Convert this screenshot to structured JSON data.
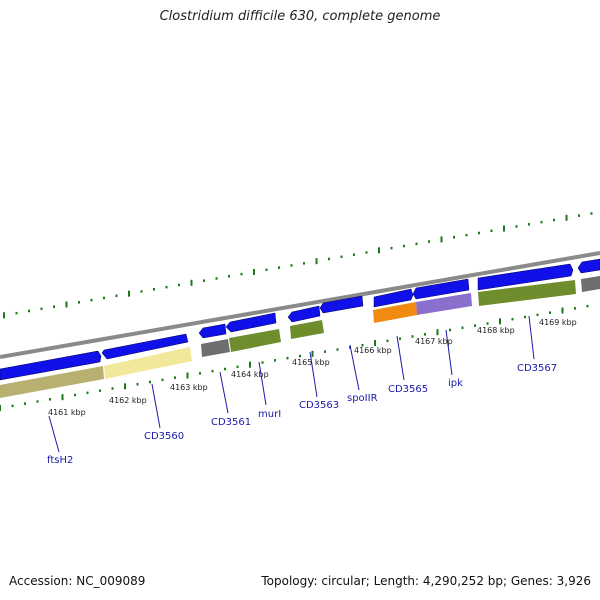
{
  "title": "Clostridium difficile 630, complete genome",
  "accession": "Accession: NC_009089",
  "stats": "Topology: circular; Length: 4,290,252 bp; Genes: 3,926",
  "colors": {
    "cds": "#1010e8",
    "tick": "#1a7a1a",
    "backbone": "#8a8a8a",
    "label": "#1a1aa8"
  },
  "kbp_labels": [
    "4161 kbp",
    "4162 kbp",
    "4163 kbp",
    "4164 kbp",
    "4165 kbp",
    "4166 kbp",
    "4167 kbp",
    "4168 kbp",
    "4169 kbp"
  ],
  "gene_labels": [
    "ftsH2",
    "CD3560",
    "CD3561",
    "murI",
    "CD3563",
    "spoIIR",
    "CD3565",
    "ipk",
    "CD3567"
  ]
}
